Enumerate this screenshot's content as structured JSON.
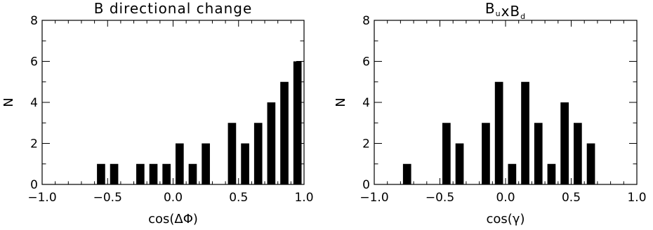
{
  "chart_data": [
    {
      "type": "bar",
      "title": "B directional change",
      "title_parts": [],
      "xlabel": "cos(ΔΦ)",
      "ylabel": "N",
      "xlim": [
        -1.0,
        1.0
      ],
      "ylim": [
        0,
        8
      ],
      "x_ticks": [
        "−1.0",
        "−0.5",
        "0.0",
        "0.5",
        "1.0"
      ],
      "y_ticks": [
        "0",
        "2",
        "4",
        "6",
        "8"
      ],
      "bin_width": 0.1,
      "x": [
        -0.55,
        -0.45,
        -0.25,
        -0.15,
        -0.05,
        0.05,
        0.15,
        0.25,
        0.45,
        0.55,
        0.65,
        0.75,
        0.85,
        0.95
      ],
      "values": [
        1,
        1,
        1,
        1,
        1,
        2,
        1,
        2,
        3,
        2,
        3,
        4,
        5,
        6
      ]
    },
    {
      "type": "bar",
      "title": "",
      "title_parts": [
        {
          "text": "B",
          "sub": "u"
        },
        {
          "text": "xB",
          "sub": "d"
        }
      ],
      "xlabel": "cos(γ)",
      "ylabel": "N",
      "xlim": [
        -1.0,
        1.0
      ],
      "ylim": [
        0,
        8
      ],
      "x_ticks": [
        "−1.0",
        "−0.5",
        "0.0",
        "0.5",
        "1.0"
      ],
      "y_ticks": [
        "0",
        "2",
        "4",
        "6",
        "8"
      ],
      "bin_width": 0.1,
      "x": [
        -0.75,
        -0.45,
        -0.35,
        -0.15,
        -0.05,
        0.05,
        0.15,
        0.25,
        0.35,
        0.45,
        0.55,
        0.65
      ],
      "values": [
        1,
        3,
        2,
        3,
        5,
        1,
        5,
        3,
        1,
        4,
        3,
        2
      ]
    }
  ]
}
